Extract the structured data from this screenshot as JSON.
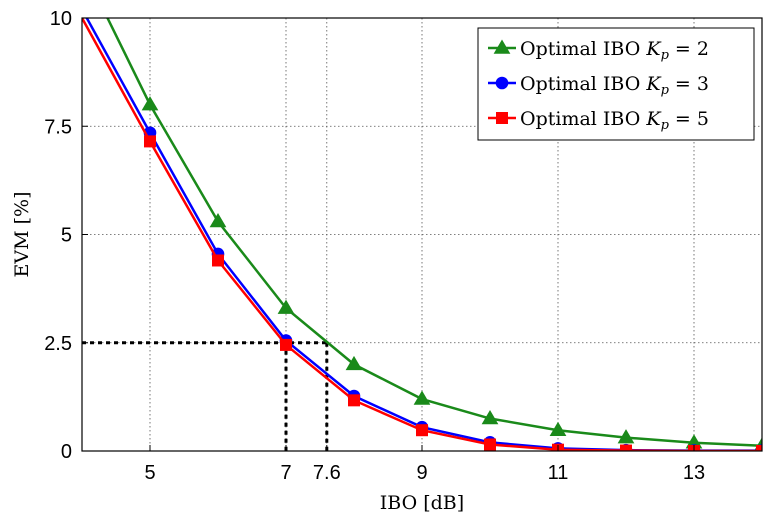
{
  "chart_data": {
    "type": "line",
    "title": "",
    "xlabel": "IBO [dB]",
    "ylabel": "EVM [%]",
    "xlim": [
      4,
      14
    ],
    "ylim": [
      0,
      10
    ],
    "xticks": [
      5,
      7,
      7.6,
      9,
      11,
      13
    ],
    "xtick_labels": [
      "5",
      "7",
      "7.6",
      "9",
      "11",
      "13"
    ],
    "yticks": [
      0,
      2.5,
      5,
      7.5,
      10
    ],
    "ytick_labels": [
      "0",
      "2.5",
      "5",
      "7.5",
      "10"
    ],
    "grid": true,
    "legend_position": "top-right",
    "x": [
      4,
      5,
      6,
      7,
      8,
      9,
      10,
      11,
      12,
      13,
      14
    ],
    "series": [
      {
        "name": "Optimal IBO K_p = 2",
        "legend_prefix": "Optimal IBO ",
        "legend_var": "K",
        "legend_sub": "p",
        "legend_suffix": " = 2",
        "color": "#1a8a1a",
        "marker": "triangle",
        "values": [
          11.2,
          8.0,
          5.3,
          3.3,
          2.0,
          1.2,
          0.75,
          0.48,
          0.31,
          0.19,
          0.12
        ]
      },
      {
        "name": "Optimal IBO K_p = 3",
        "legend_prefix": "Optimal IBO ",
        "legend_var": "K",
        "legend_sub": "p",
        "legend_suffix": " = 3",
        "color": "#0000ff",
        "marker": "circle",
        "values": [
          10.2,
          7.35,
          4.55,
          2.55,
          1.27,
          0.55,
          0.2,
          0.06,
          0.02,
          0.01,
          0.01
        ]
      },
      {
        "name": "Optimal IBO K_p = 5",
        "legend_prefix": "Optimal IBO ",
        "legend_var": "K",
        "legend_sub": "p",
        "legend_suffix": " = 5",
        "color": "#ff0000",
        "marker": "square",
        "values": [
          10.0,
          7.15,
          4.4,
          2.45,
          1.17,
          0.48,
          0.15,
          0.03,
          0.01,
          0.0,
          0.0
        ]
      }
    ],
    "annotations": {
      "reference_y": 2.5,
      "reference_x": [
        7,
        7.6
      ]
    }
  }
}
